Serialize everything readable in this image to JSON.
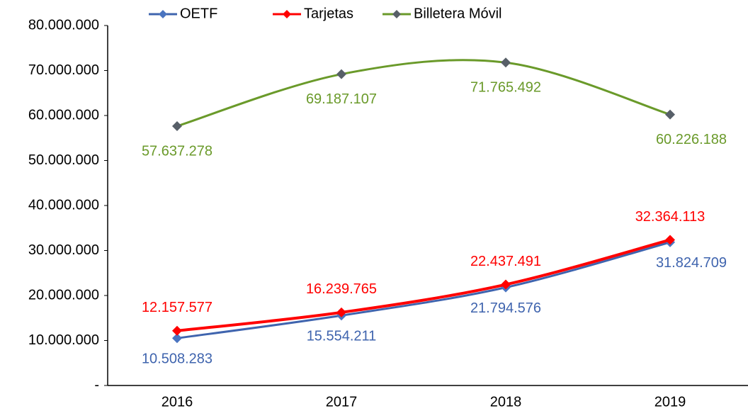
{
  "chart_data": {
    "type": "line",
    "categories": [
      "2016",
      "2017",
      "2018",
      "2019"
    ],
    "series": [
      {
        "name": "OETF",
        "color": "#3f64ae",
        "marker_color": "#4a74c0",
        "label_color": "#3f64ae",
        "values": [
          10508283,
          15554211,
          21794576,
          31824709
        ],
        "value_labels": [
          "10.508.283",
          "15.554.211",
          "21.794.576",
          "31.824.709"
        ]
      },
      {
        "name": "Tarjetas",
        "color": "#ff0000",
        "marker_color": "#ff0000",
        "label_color": "#ff0000",
        "values": [
          12157577,
          16239765,
          22437491,
          32364113
        ],
        "value_labels": [
          "12.157.577",
          "16.239.765",
          "22.437.491",
          "32.364.113"
        ]
      },
      {
        "name": "Billetera Móvil",
        "color": "#6a9a2a",
        "marker_color": "#575f68",
        "label_color": "#6a9a2a",
        "values": [
          57637278,
          69187107,
          71765492,
          60226188
        ],
        "value_labels": [
          "57.637.278",
          "69.187.107",
          "71.765.492",
          "60.226.188"
        ]
      }
    ],
    "ylim": [
      0,
      80000000
    ],
    "yticks": [
      {
        "value": 0,
        "label": "-"
      },
      {
        "value": 10000000,
        "label": "10.000.000"
      },
      {
        "value": 20000000,
        "label": "20.000.000"
      },
      {
        "value": 30000000,
        "label": "30.000.000"
      },
      {
        "value": 40000000,
        "label": "40.000.000"
      },
      {
        "value": 50000000,
        "label": "50.000.000"
      },
      {
        "value": 60000000,
        "label": "60.000.000"
      },
      {
        "value": 70000000,
        "label": "70.000.000"
      },
      {
        "value": 80000000,
        "label": "80.000.000"
      }
    ],
    "smooth": true,
    "grid": false,
    "legend": "top"
  }
}
